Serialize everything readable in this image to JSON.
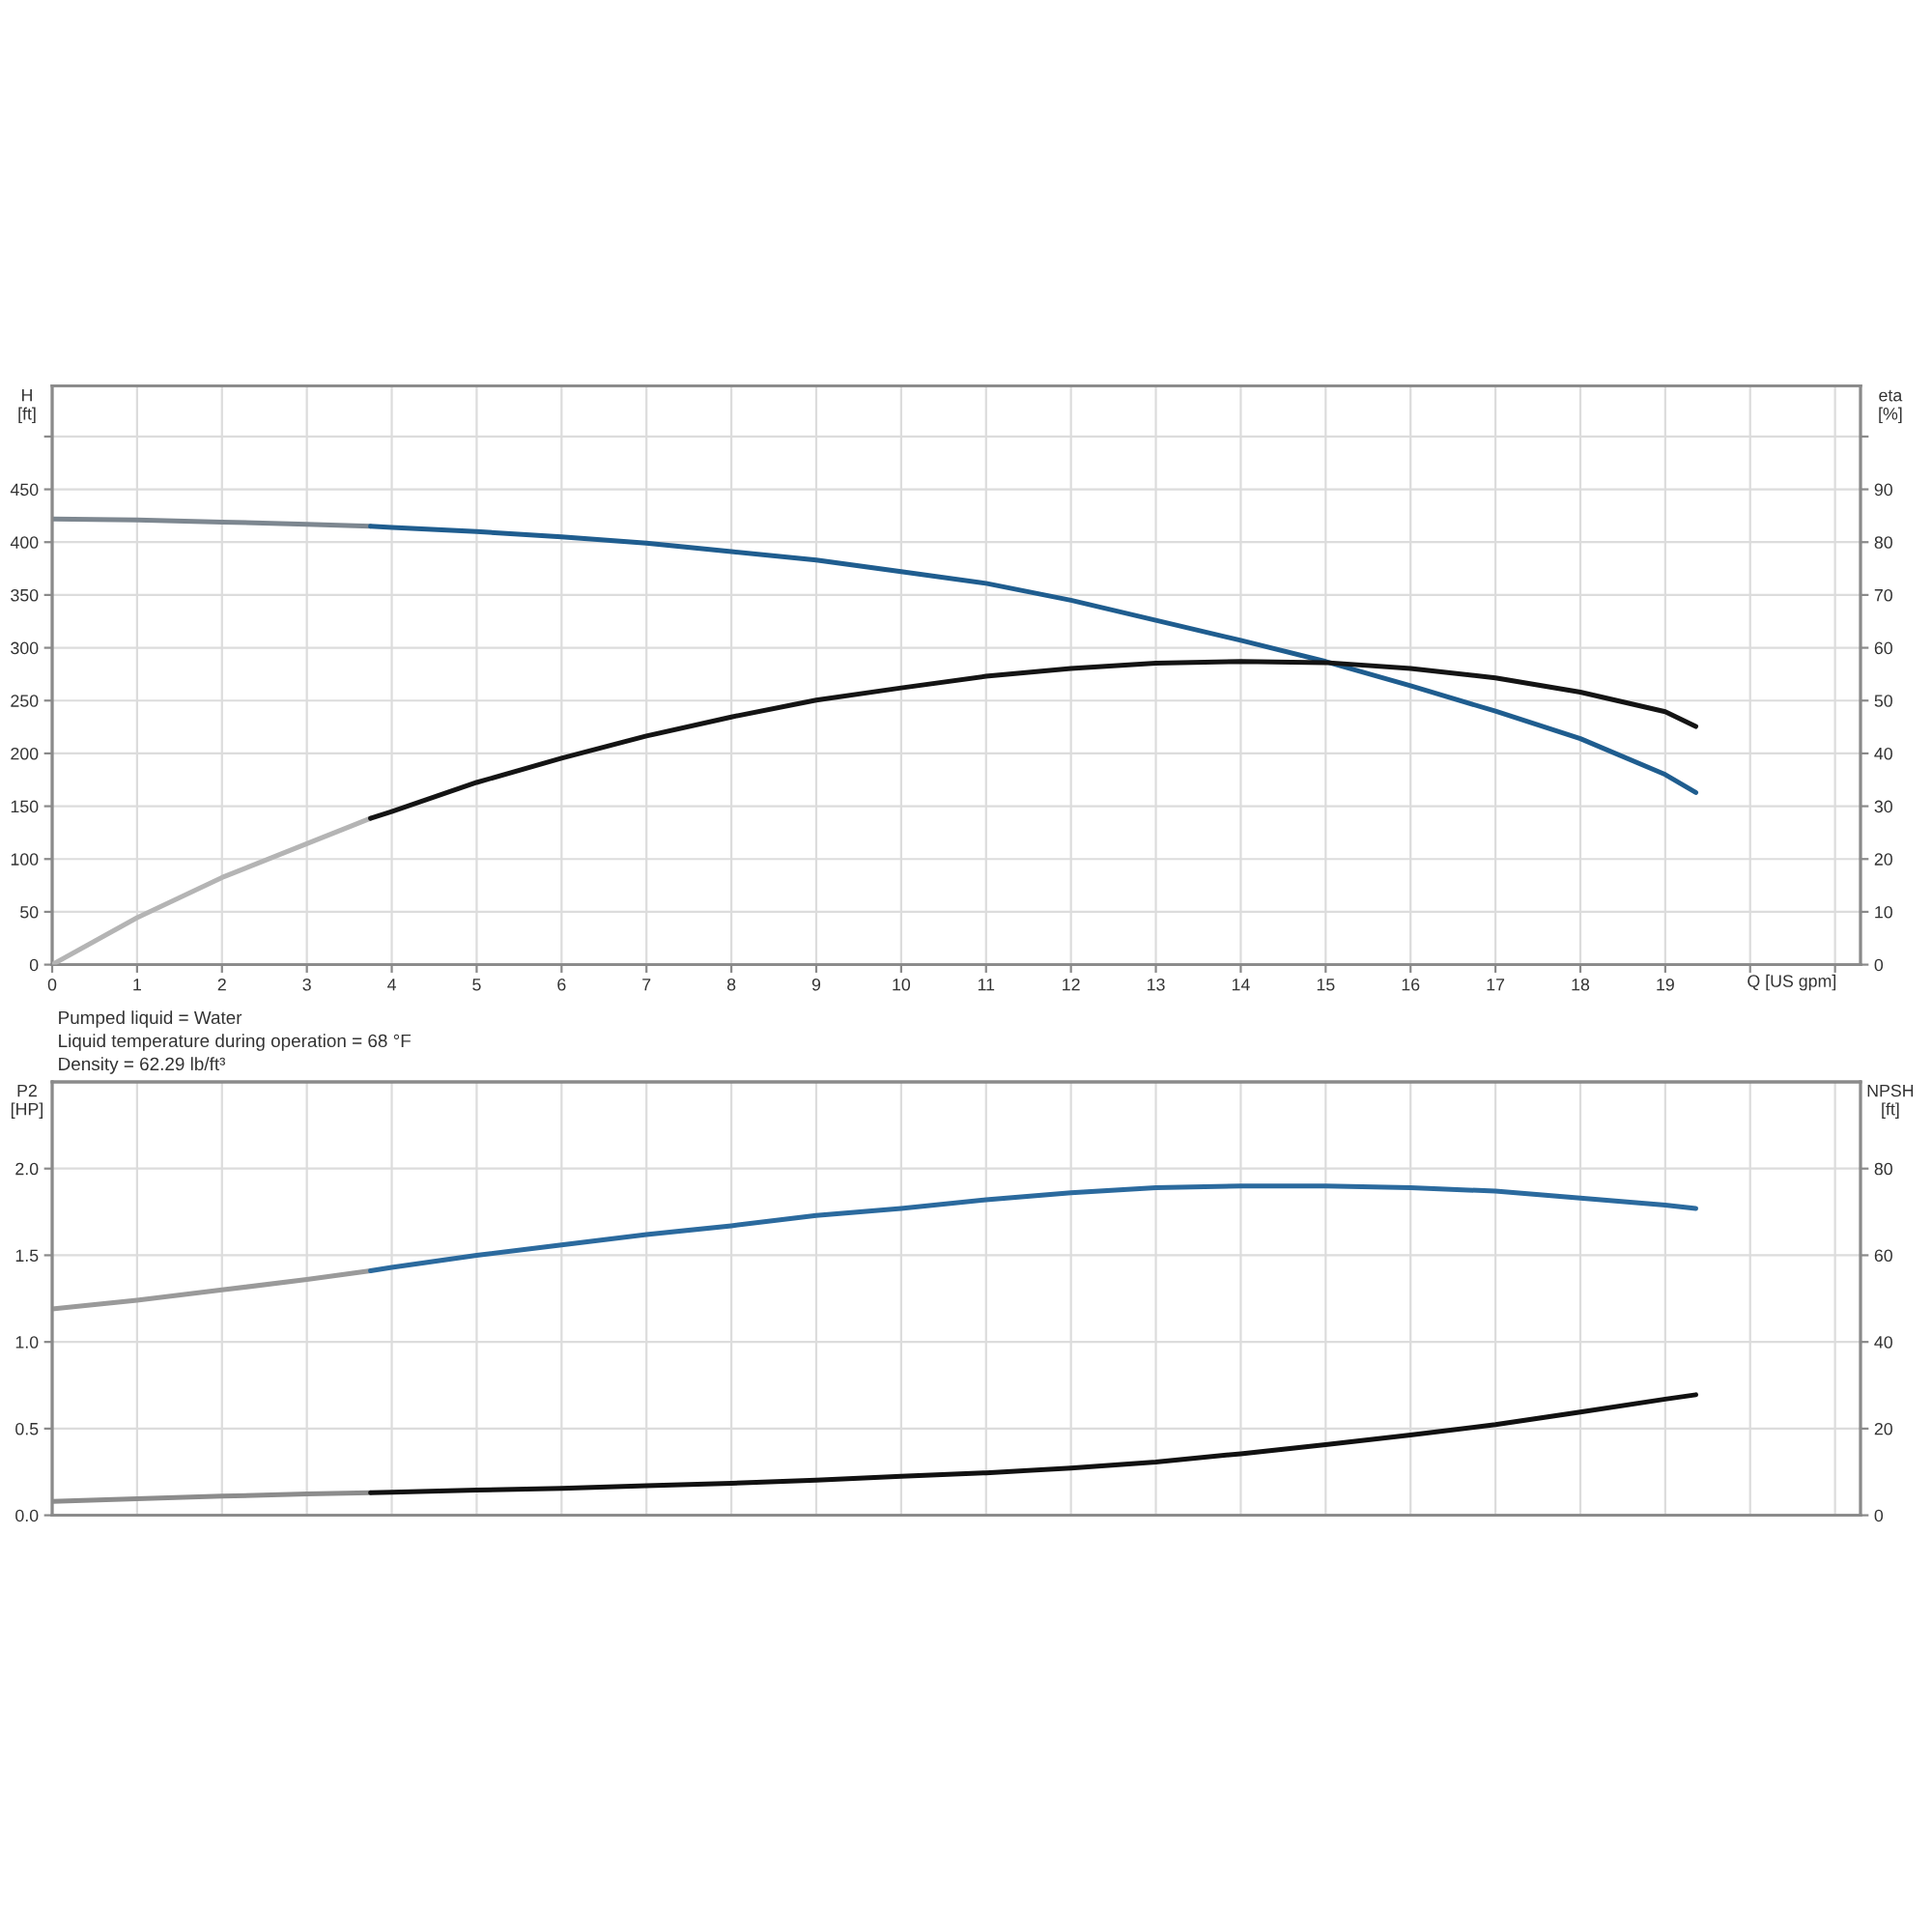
{
  "chart_data": [
    {
      "type": "line",
      "xlabel": "Q [US gpm]",
      "ylabel": "H\n[ft]",
      "y2label": "eta\n[%]",
      "xlim": [
        0,
        21.3
      ],
      "xticks": [
        0,
        1,
        2,
        3,
        4,
        5,
        6,
        7,
        8,
        9,
        10,
        11,
        12,
        13,
        14,
        15,
        16,
        17,
        18,
        19,
        {
          "value": 20,
          "label": null
        },
        {
          "value": 21,
          "label": null
        }
      ],
      "ylim": [
        0,
        548
      ],
      "yticks": [
        0,
        50,
        100,
        150,
        200,
        250,
        300,
        350,
        400,
        450,
        {
          "value": 500,
          "label": null
        }
      ],
      "y2lim": [
        0,
        109.6
      ],
      "y2ticks": [
        0,
        10,
        20,
        30,
        40,
        50,
        60,
        70,
        80,
        90,
        {
          "value": 100,
          "label": null
        }
      ],
      "grid": true,
      "series": [
        {
          "color": "#7d8790",
          "x": [
            0,
            1,
            2,
            3,
            3.75
          ],
          "values": [
            422,
            421,
            419,
            417,
            415
          ]
        },
        {
          "color": "#1f5d8f",
          "x": [
            3.75,
            4,
            5,
            6,
            7,
            8,
            9,
            10,
            11,
            12,
            13,
            14,
            15,
            16,
            17,
            18,
            19,
            19.36
          ],
          "values": [
            415,
            414,
            410,
            405,
            399,
            391,
            383,
            372,
            361,
            345,
            326,
            307,
            287,
            264,
            240,
            214,
            180,
            163
          ]
        },
        {
          "color": "#b4b4b4",
          "axis": "y2",
          "x": [
            0,
            1,
            2,
            3,
            3.75
          ],
          "values": [
            0,
            8.9,
            16.5,
            22.9,
            27.7
          ]
        },
        {
          "color": "#141414",
          "axis": "y2",
          "x": [
            3.75,
            4,
            5,
            6,
            7,
            8,
            9,
            10,
            11,
            12,
            13,
            14,
            15,
            16,
            17,
            18,
            19,
            19.36
          ],
          "values": [
            27.7,
            29,
            34.5,
            39.1,
            43.3,
            46.9,
            50.1,
            52.4,
            54.6,
            56.1,
            57.1,
            57.4,
            57.2,
            56.1,
            54.3,
            51.6,
            47.9,
            45.1
          ]
        }
      ]
    },
    {
      "type": "line",
      "ylabel": "P2\n[HP]",
      "y2label": "NPSH\n[ft]",
      "tick_labels": "y",
      "xlim": [
        0,
        21.3
      ],
      "xticks": [
        0,
        1,
        2,
        3,
        4,
        5,
        6,
        7,
        8,
        9,
        10,
        11,
        12,
        13,
        14,
        15,
        16,
        17,
        18,
        19,
        20,
        21
      ],
      "ylim": [
        0,
        2.5
      ],
      "yticks": [
        {
          "value": 0,
          "label": "0.0"
        },
        0.5,
        {
          "value": 1,
          "label": "1.0"
        },
        1.5,
        {
          "value": 2,
          "label": "2.0"
        }
      ],
      "y2lim": [
        0,
        100
      ],
      "y2ticks": [
        0,
        20,
        40,
        60,
        80
      ],
      "grid": true,
      "annotations": [
        "Pumped liquid = Water",
        "Liquid temperature during operation = 68 °F",
        "Density = 62.29 lb/ft³"
      ],
      "series": [
        {
          "color": "#9a9a9a",
          "x": [
            0,
            1,
            2,
            3,
            3.75
          ],
          "values": [
            1.19,
            1.24,
            1.3,
            1.36,
            1.41
          ]
        },
        {
          "color": "#2b6a9e",
          "x": [
            3.75,
            4,
            5,
            6,
            7,
            8,
            9,
            10,
            11,
            12,
            13,
            14,
            15,
            16,
            17,
            18,
            19,
            19.36
          ],
          "values": [
            1.41,
            1.43,
            1.5,
            1.56,
            1.62,
            1.67,
            1.73,
            1.77,
            1.82,
            1.86,
            1.89,
            1.9,
            1.9,
            1.89,
            1.87,
            1.83,
            1.79,
            1.77
          ]
        },
        {
          "color": "#8c8c8c",
          "axis": "y2",
          "x": [
            0,
            1,
            2,
            3,
            3.75
          ],
          "values": [
            3.2,
            3.8,
            4.4,
            4.9,
            5.2
          ]
        },
        {
          "color": "#111111",
          "axis": "y2",
          "x": [
            3.75,
            4,
            5,
            6,
            7,
            8,
            9,
            10,
            11,
            12,
            13,
            14,
            15,
            16,
            17,
            18,
            19,
            19.36
          ],
          "values": [
            5.2,
            5.3,
            5.8,
            6.2,
            6.8,
            7.4,
            8.1,
            9.0,
            9.8,
            10.9,
            12.3,
            14.2,
            16.3,
            18.5,
            20.9,
            23.8,
            26.8,
            27.8
          ]
        }
      ]
    }
  ]
}
